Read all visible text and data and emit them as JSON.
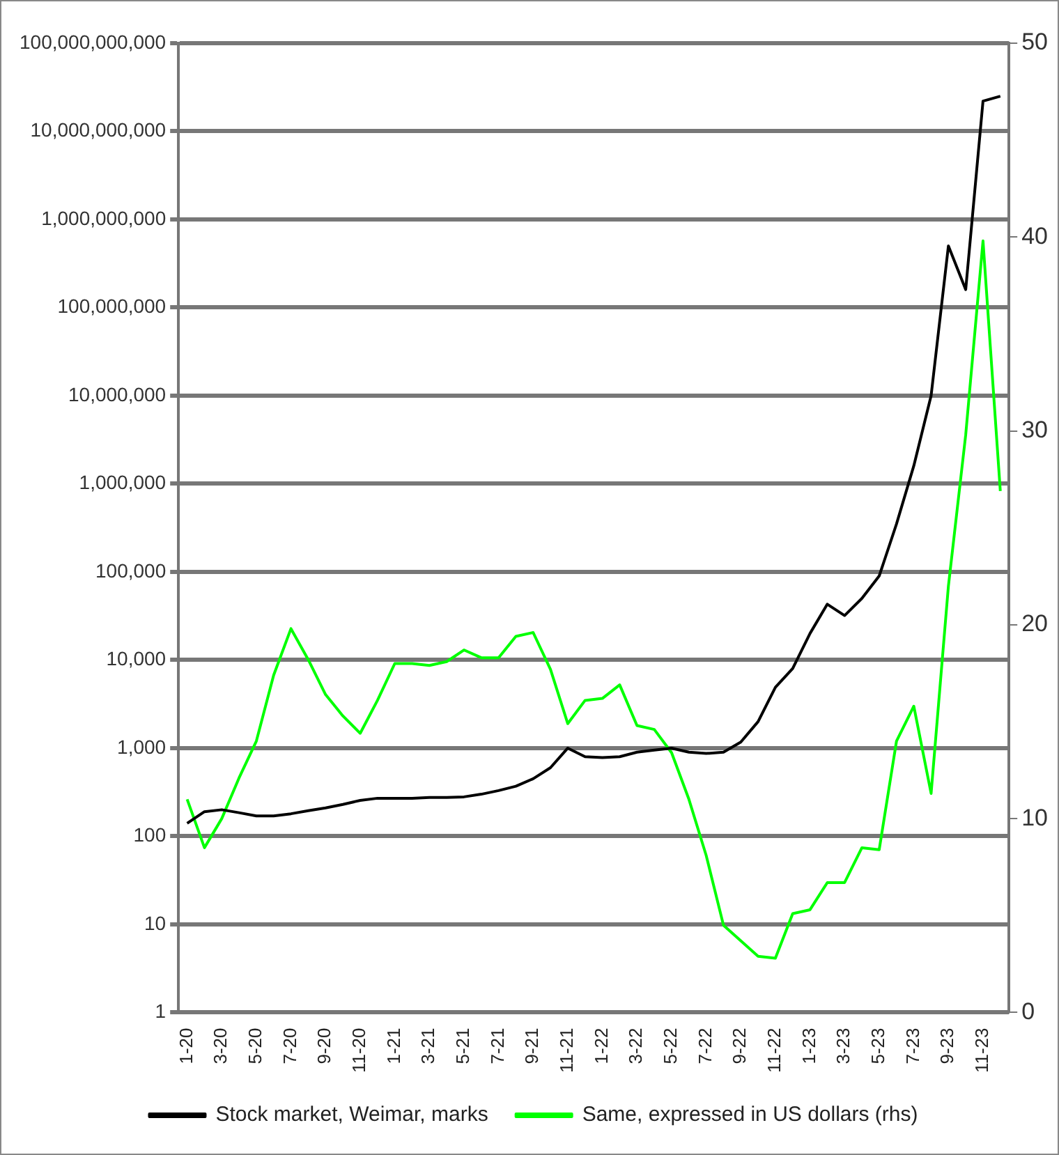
{
  "chart_data": {
    "type": "line",
    "categories": [
      "1-20",
      null,
      "3-20",
      null,
      "5-20",
      null,
      "7-20",
      null,
      "9-20",
      null,
      "11-20",
      null,
      "1-21",
      null,
      "3-21",
      null,
      "5-21",
      null,
      "7-21",
      null,
      "9-21",
      null,
      "11-21",
      null,
      "1-22",
      null,
      "3-22",
      null,
      "5-22",
      null,
      "7-22",
      null,
      "9-22",
      null,
      "11-22",
      null,
      "1-23",
      null,
      "3-23",
      null,
      "5-23",
      null,
      "7-23",
      null,
      "9-23",
      null,
      "11-23",
      null
    ],
    "series": [
      {
        "name": "Stock market, Weimar, marks",
        "color": "#000000",
        "values": [
          140,
          190,
          200,
          185,
          170,
          170,
          180,
          195,
          210,
          230,
          255,
          270,
          270,
          270,
          275,
          275,
          280,
          300,
          330,
          370,
          450,
          600,
          1000,
          800,
          780,
          800,
          900,
          950,
          1000,
          900,
          870,
          900,
          1170,
          2000,
          4900,
          8000,
          20000,
          43000,
          32000,
          50000,
          90000,
          350000,
          1600000,
          10000000,
          500000000,
          160000000,
          22000000000,
          25000000000
        ]
      },
      {
        "name": "Same, expressed in US dollars (rhs)",
        "color": "#00ff00",
        "axis": "y2",
        "values": [
          11,
          8.5,
          10,
          12.1,
          14,
          17.4,
          19.8,
          18.2,
          16.4,
          15.3,
          14.4,
          16.1,
          18,
          18,
          17.9,
          18.1,
          18.7,
          18.3,
          18.3,
          19.4,
          19.6,
          17.7,
          14.9,
          16.1,
          16.2,
          16.9,
          14.8,
          14.6,
          13.4,
          11,
          8.1,
          4.5,
          3.7,
          2.9,
          2.8,
          5.1,
          5.3,
          6.7,
          6.7,
          8.5,
          8.4,
          14,
          15.8,
          11.3,
          22,
          29.8,
          39.8,
          26.9
        ]
      }
    ],
    "log": "y",
    "ylim": [
      1,
      100000000000
    ],
    "yticks": [
      1,
      10,
      100,
      {
        "value": 1000,
        "label": "1,000"
      },
      {
        "value": 10000,
        "label": "10,000"
      },
      {
        "value": 100000,
        "label": "100,000"
      },
      {
        "value": 1000000,
        "label": "1,000,000"
      },
      {
        "value": 10000000,
        "label": "10,000,000"
      },
      {
        "value": 100000000,
        "label": "100,000,000"
      },
      {
        "value": 1000000000,
        "label": "1,000,000,000"
      },
      {
        "value": 10000000000,
        "label": "10,000,000,000"
      },
      {
        "value": 100000000000,
        "label": "100,000,000,000"
      }
    ],
    "y2lim": [
      0,
      50
    ],
    "y2ticks": [
      0,
      10,
      20,
      30,
      40,
      50
    ],
    "grid": "y",
    "legend": "bottom",
    "marker": "none",
    "line_style": "solid"
  }
}
